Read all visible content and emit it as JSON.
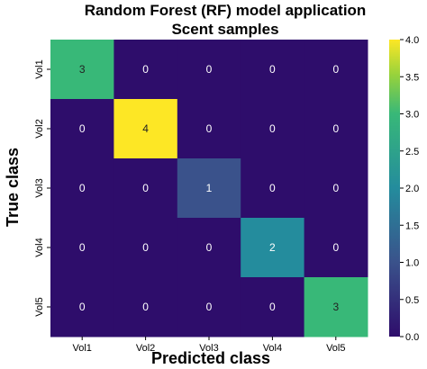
{
  "chart_data": {
    "type": "heatmap",
    "title": "Random Forest (RF) model application",
    "subtitle": "Scent samples",
    "xlabel": "Predicted class",
    "ylabel": "True class",
    "x_categories": [
      "Vol1",
      "Vol2",
      "Vol3",
      "Vol4",
      "Vol5"
    ],
    "y_categories": [
      "Vol1",
      "Vol2",
      "Vol3",
      "Vol4",
      "Vol5"
    ],
    "values": [
      [
        3,
        0,
        0,
        0,
        0
      ],
      [
        0,
        4,
        0,
        0,
        0
      ],
      [
        0,
        0,
        1,
        0,
        0
      ],
      [
        0,
        0,
        0,
        2,
        0
      ],
      [
        0,
        0,
        0,
        0,
        3
      ]
    ],
    "colorbar": {
      "min": 0,
      "max": 4,
      "ticks": [
        "0.0",
        "0.5",
        "1.0",
        "1.5",
        "2.0",
        "2.5",
        "3.0",
        "3.5",
        "4.0"
      ],
      "colormap": "viridis"
    },
    "colors": {
      "low": "#2e0d6b",
      "high": "#fde725"
    }
  }
}
